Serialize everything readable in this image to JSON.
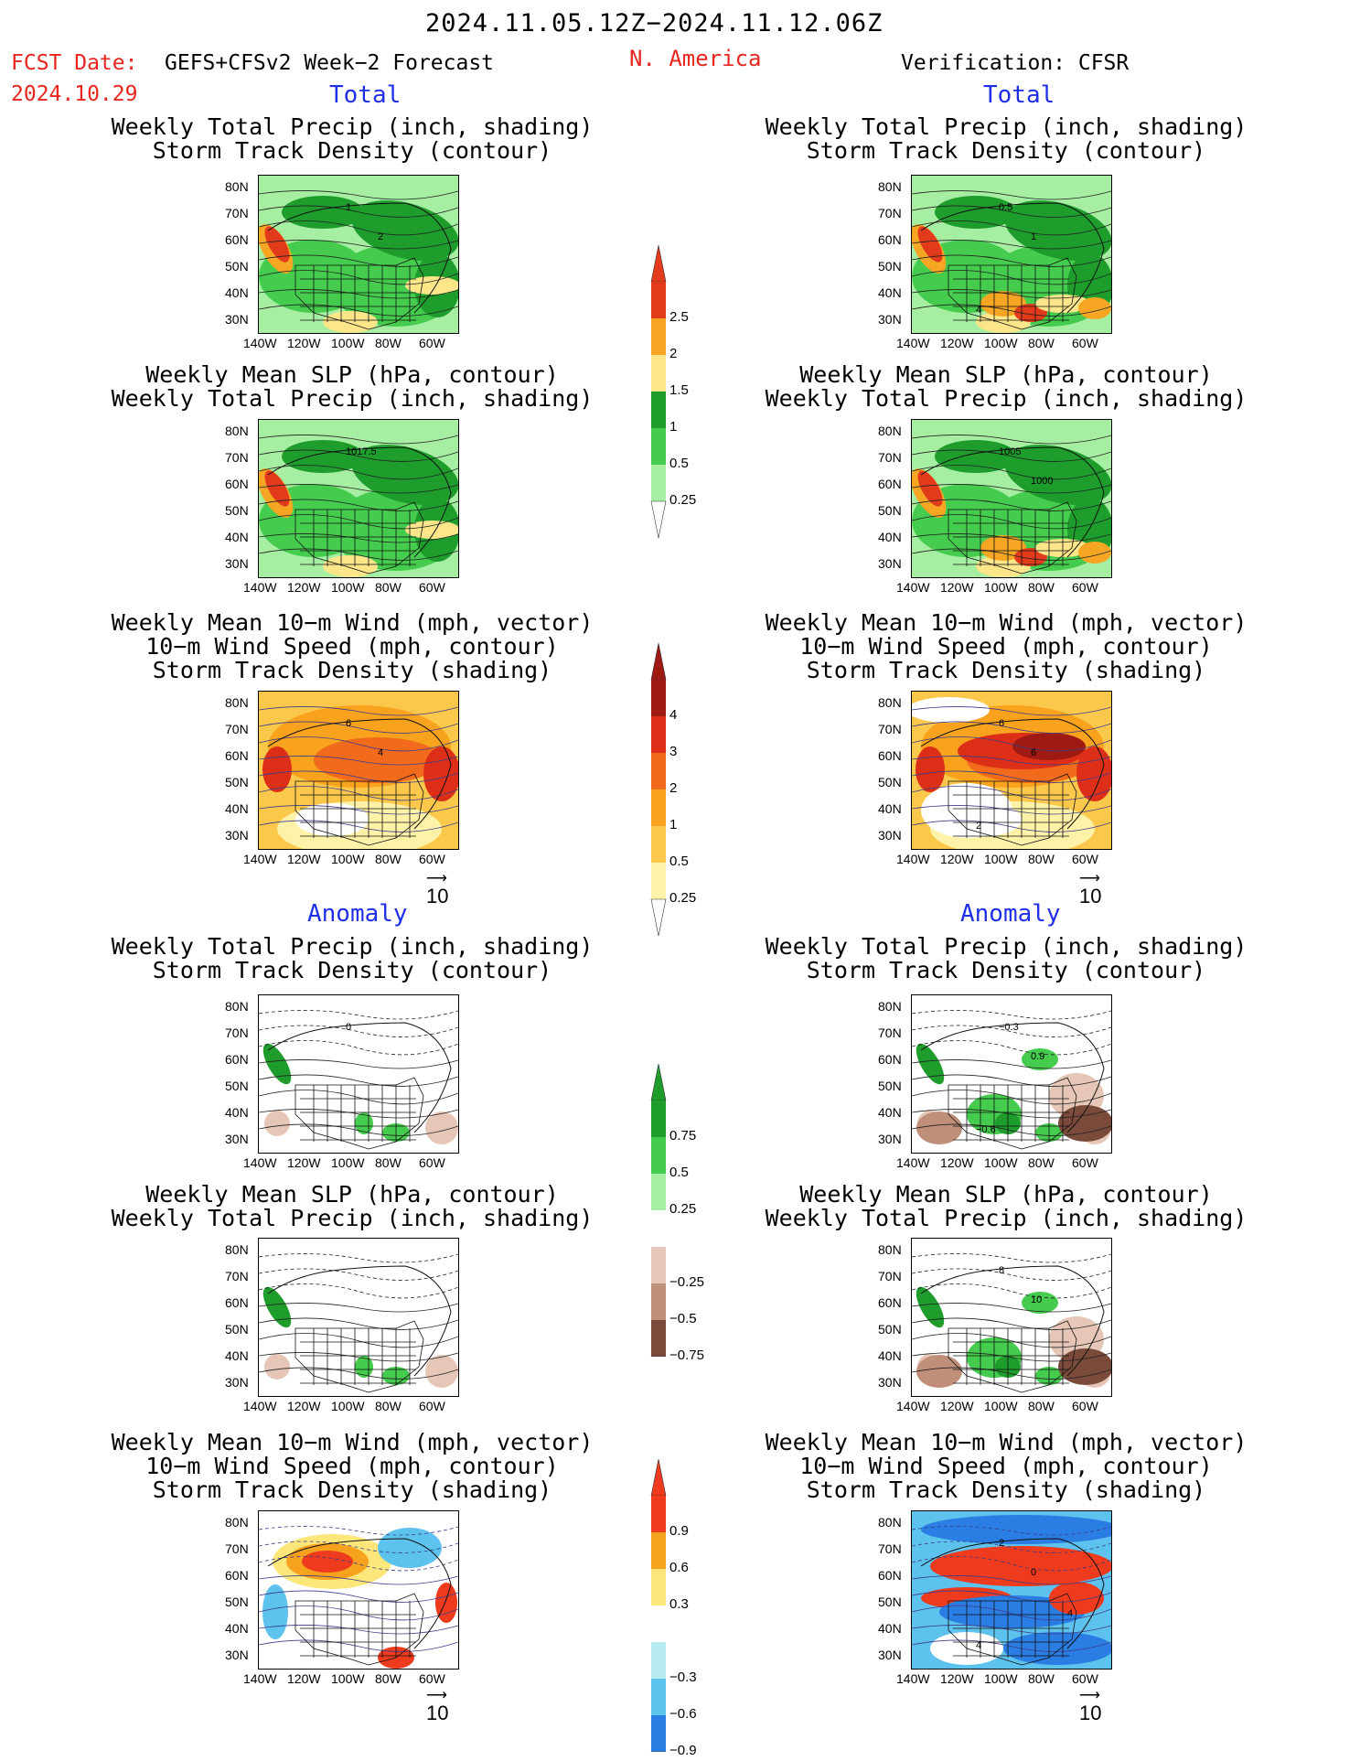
{
  "header": {
    "date_range": "2024.11.05.12Z−2024.11.12.06Z",
    "fcst_label": "FCST Date:",
    "fcst_model": "GEFS+CFSv2 Week−2 Forecast",
    "fcst_date": "2024.10.29",
    "region": "N. America",
    "verification": "Verification: CFSR"
  },
  "sections": {
    "total": "Total",
    "anomaly": "Anomaly"
  },
  "panel_titles": {
    "precip_storm": [
      "Weekly Total Precip (inch, shading)",
      "Storm Track Density (contour)"
    ],
    "slp_precip": [
      "Weekly Mean SLP (hPa, contour)",
      "Weekly Total Precip (inch, shading)"
    ],
    "wind_storm": [
      "Weekly Mean 10−m Wind (mph, vector)",
      "10−m Wind Speed (mph, contour)",
      "Storm Track Density (shading)"
    ]
  },
  "axes": {
    "lat_ticks": [
      "80N",
      "70N",
      "60N",
      "50N",
      "40N",
      "30N"
    ],
    "lon_ticks": [
      "140W",
      "120W",
      "100W",
      "80W",
      "60W"
    ]
  },
  "vector_ref": "10",
  "contour_labels": {
    "map1": [
      "1",
      "2"
    ],
    "map2": [
      "0.5",
      "1",
      "4"
    ],
    "map3": [
      "1017.5"
    ],
    "map4": [
      "1005",
      "1000"
    ],
    "map5": [
      "6",
      "4"
    ],
    "map6": [
      "6",
      "6",
      "2"
    ],
    "map7": [
      "0"
    ],
    "map8": [
      "−0.3",
      "0.9",
      "−0.6"
    ],
    "map9": [],
    "map10": [
      "8",
      "10"
    ],
    "map11": [],
    "map12": [
      "2",
      "0",
      "4",
      "4"
    ]
  },
  "colorbars": {
    "precip_total": {
      "labels": [
        "2.5",
        "2",
        "1.5",
        "1",
        "0.5",
        "0.25"
      ],
      "colors": [
        "#e23b1c",
        "#f6a623",
        "#fde68a",
        "#1e9c2c",
        "#45cc4e",
        "#a6eea2"
      ]
    },
    "storm_total": {
      "labels": [
        "4",
        "3",
        "2",
        "1",
        "0.5",
        "0.25"
      ],
      "colors": [
        "#9e1a12",
        "#dd2f17",
        "#f26a1b",
        "#f8a21d",
        "#fbc84c",
        "#fef2a8"
      ]
    },
    "precip_anom": {
      "labels": [
        "0.75",
        "0.5",
        "0.25",
        "−0.25",
        "−0.5",
        "−0.75"
      ],
      "colors": [
        "#1e9c2c",
        "#45cc4e",
        "#a6eea2",
        "#e6c6b6",
        "#bf8f7a",
        "#7a4b3a"
      ]
    },
    "storm_anom": {
      "labels": [
        "0.9",
        "0.6",
        "0.3",
        "−0.3",
        "−0.6",
        "−0.9"
      ],
      "colors": [
        "#ee3a1d",
        "#f7a21f",
        "#fde77a",
        "#b6ebf4",
        "#5ec2ee",
        "#2a7de3"
      ]
    }
  }
}
